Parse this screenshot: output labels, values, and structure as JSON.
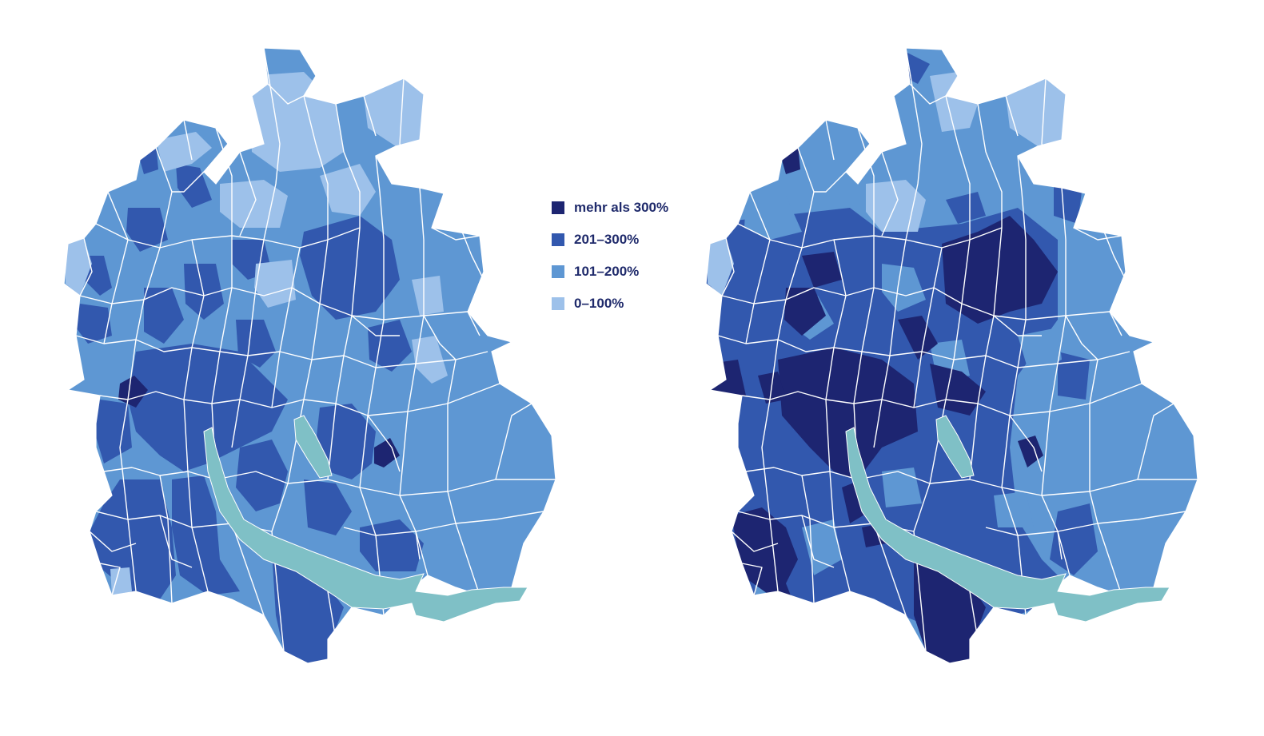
{
  "colors": {
    "c1": "#1d2571",
    "c2": "#3258ae",
    "c3": "#5e97d3",
    "c4": "#9dc1ea",
    "lake": "#7fc0c6",
    "border": "#ffffff"
  },
  "legend": [
    {
      "label": "mehr als 300%",
      "color": "#1d2571"
    },
    {
      "label": "201–300%",
      "color": "#3258ae"
    },
    {
      "label": "101–200%",
      "color": "#5e97d3"
    },
    {
      "label": "0–100%",
      "color": "#9dc1ea"
    }
  ],
  "maps": [
    "left",
    "right"
  ]
}
